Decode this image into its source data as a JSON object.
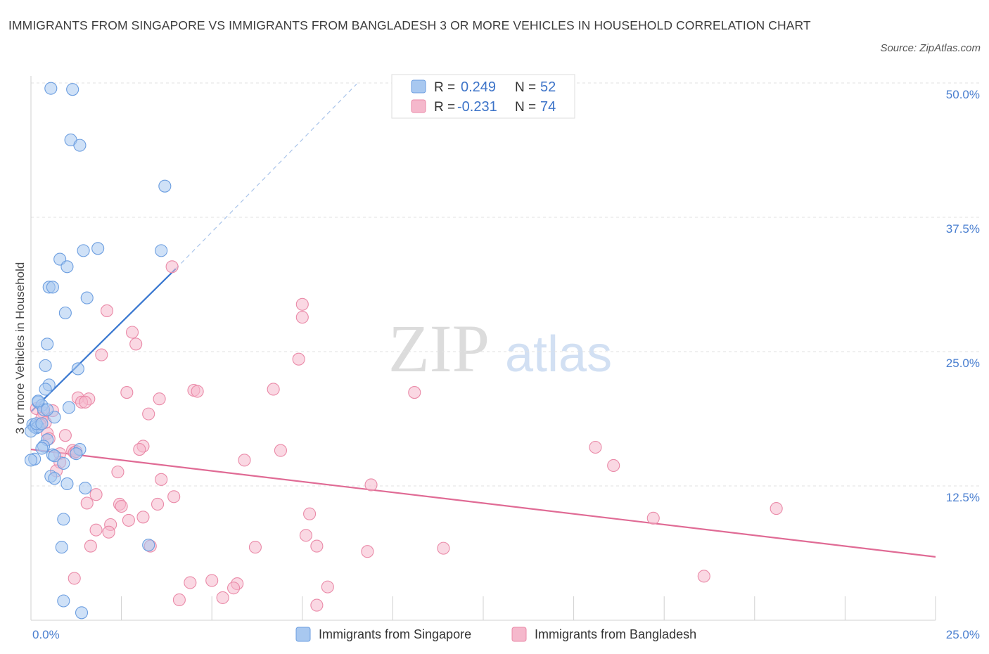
{
  "title": "IMMIGRANTS FROM SINGAPORE VS IMMIGRANTS FROM BANGLADESH 3 OR MORE VEHICLES IN HOUSEHOLD CORRELATION CHART",
  "source": "Source: ZipAtlas.com",
  "watermark": {
    "zip": "ZIP",
    "atlas": "atlas"
  },
  "legend": {
    "r_label": "R =",
    "n_label": "N =",
    "rows": [
      {
        "r": "0.249",
        "n": "52"
      },
      {
        "r": "-0.231",
        "n": "74"
      }
    ]
  },
  "colors": {
    "blue_fill": "#a8c8f0",
    "blue_stroke": "#6c9ee0",
    "blue_line": "#3a78d0",
    "pink_fill": "#f5b8cc",
    "pink_stroke": "#ea8aa8",
    "pink_line": "#e06b95"
  },
  "chart_data": {
    "type": "scatter",
    "title": "IMMIGRANTS FROM SINGAPORE VS IMMIGRANTS FROM BANGLADESH 3 OR MORE VEHICLES IN HOUSEHOLD CORRELATION CHART",
    "xlabel": "",
    "ylabel": "3 or more Vehicles in Household",
    "xlim": [
      0,
      25
    ],
    "ylim": [
      0,
      50
    ],
    "x_tick_labels": [
      "0.0%",
      "25.0%"
    ],
    "y_ticks": [
      12.5,
      25.0,
      37.5,
      50.0
    ],
    "y_tick_labels": [
      "12.5%",
      "25.0%",
      "37.5%",
      "50.0%"
    ],
    "grid": true,
    "legend_position": "top-center and bottom",
    "series": [
      {
        "name": "Immigrants from Singapore",
        "color": "#a8c8f0",
        "points": [
          [
            0.55,
            49.5
          ],
          [
            1.15,
            49.4
          ],
          [
            1.1,
            44.7
          ],
          [
            1.35,
            44.2
          ],
          [
            3.7,
            40.4
          ],
          [
            1.45,
            34.4
          ],
          [
            1.85,
            34.6
          ],
          [
            3.6,
            34.4
          ],
          [
            0.8,
            33.6
          ],
          [
            1.0,
            32.9
          ],
          [
            0.5,
            31.0
          ],
          [
            0.6,
            31.0
          ],
          [
            1.55,
            30.0
          ],
          [
            0.95,
            28.6
          ],
          [
            0.45,
            25.7
          ],
          [
            0.4,
            23.7
          ],
          [
            1.3,
            23.4
          ],
          [
            0.5,
            21.9
          ],
          [
            0.4,
            21.5
          ],
          [
            0.2,
            20.3
          ],
          [
            0.3,
            20.0
          ],
          [
            0.35,
            19.6
          ],
          [
            1.05,
            19.8
          ],
          [
            0.65,
            18.9
          ],
          [
            0.05,
            18.2
          ],
          [
            0.1,
            18.0
          ],
          [
            0.15,
            17.9
          ],
          [
            0.2,
            18.0
          ],
          [
            0.0,
            17.6
          ],
          [
            0.45,
            16.8
          ],
          [
            0.35,
            16.2
          ],
          [
            0.3,
            16.0
          ],
          [
            1.35,
            15.9
          ],
          [
            0.6,
            15.4
          ],
          [
            0.65,
            15.3
          ],
          [
            0.1,
            15.0
          ],
          [
            0.0,
            14.9
          ],
          [
            0.9,
            14.6
          ],
          [
            0.55,
            13.4
          ],
          [
            0.65,
            13.2
          ],
          [
            1.0,
            12.7
          ],
          [
            1.5,
            12.3
          ],
          [
            0.9,
            9.4
          ],
          [
            3.25,
            7.0
          ],
          [
            0.85,
            6.8
          ],
          [
            0.9,
            1.8
          ],
          [
            1.4,
            0.7
          ],
          [
            0.15,
            18.3
          ],
          [
            0.2,
            20.4
          ],
          [
            0.45,
            19.6
          ],
          [
            0.3,
            18.3
          ],
          [
            1.25,
            15.5
          ]
        ]
      },
      {
        "name": "Immigrants from Bangladesh",
        "color": "#f5b8cc",
        "points": [
          [
            3.9,
            32.9
          ],
          [
            2.1,
            28.8
          ],
          [
            7.5,
            28.2
          ],
          [
            7.5,
            29.4
          ],
          [
            2.8,
            26.8
          ],
          [
            2.9,
            25.7
          ],
          [
            1.95,
            24.7
          ],
          [
            7.4,
            24.3
          ],
          [
            4.5,
            21.4
          ],
          [
            4.6,
            21.3
          ],
          [
            6.7,
            21.5
          ],
          [
            10.6,
            21.2
          ],
          [
            2.65,
            21.2
          ],
          [
            1.3,
            20.7
          ],
          [
            1.6,
            20.6
          ],
          [
            3.55,
            20.6
          ],
          [
            1.4,
            20.3
          ],
          [
            1.5,
            20.3
          ],
          [
            0.15,
            19.7
          ],
          [
            0.6,
            19.5
          ],
          [
            0.35,
            19.3
          ],
          [
            3.25,
            19.2
          ],
          [
            0.3,
            18.8
          ],
          [
            0.4,
            18.4
          ],
          [
            0.25,
            18.2
          ],
          [
            0.45,
            17.4
          ],
          [
            0.95,
            17.2
          ],
          [
            0.5,
            16.9
          ],
          [
            3.1,
            16.2
          ],
          [
            3.0,
            15.9
          ],
          [
            6.9,
            15.8
          ],
          [
            15.6,
            16.1
          ],
          [
            1.15,
            15.8
          ],
          [
            1.2,
            15.6
          ],
          [
            1.25,
            15.7
          ],
          [
            0.8,
            15.5
          ],
          [
            5.9,
            14.9
          ],
          [
            16.1,
            14.4
          ],
          [
            0.8,
            14.7
          ],
          [
            0.7,
            13.9
          ],
          [
            2.4,
            13.8
          ],
          [
            3.6,
            13.1
          ],
          [
            9.4,
            12.6
          ],
          [
            1.8,
            11.7
          ],
          [
            3.95,
            11.5
          ],
          [
            1.55,
            10.9
          ],
          [
            2.45,
            10.8
          ],
          [
            2.5,
            10.6
          ],
          [
            3.5,
            10.8
          ],
          [
            7.7,
            9.9
          ],
          [
            3.1,
            9.6
          ],
          [
            2.7,
            9.3
          ],
          [
            2.2,
            8.9
          ],
          [
            1.8,
            8.4
          ],
          [
            2.15,
            8.2
          ],
          [
            17.2,
            9.5
          ],
          [
            20.6,
            10.4
          ],
          [
            7.6,
            7.9
          ],
          [
            1.65,
            6.9
          ],
          [
            3.3,
            6.9
          ],
          [
            6.2,
            6.8
          ],
          [
            7.9,
            6.9
          ],
          [
            11.4,
            6.7
          ],
          [
            9.3,
            6.4
          ],
          [
            18.6,
            4.1
          ],
          [
            1.2,
            3.9
          ],
          [
            4.4,
            3.5
          ],
          [
            5.0,
            3.7
          ],
          [
            5.7,
            3.4
          ],
          [
            5.6,
            3.0
          ],
          [
            8.2,
            3.1
          ],
          [
            5.3,
            2.1
          ],
          [
            4.1,
            1.9
          ],
          [
            7.9,
            1.4
          ]
        ]
      }
    ],
    "trend_lines": [
      {
        "series": "Immigrants from Singapore",
        "x": [
          0.0,
          4.0
        ],
        "y": [
          19.4,
          32.7
        ],
        "dashed_extension_to": [
          9.0,
          49.9
        ]
      },
      {
        "series": "Immigrants from Bangladesh",
        "x": [
          0.0,
          25.0
        ],
        "y": [
          15.9,
          5.9
        ]
      }
    ]
  }
}
